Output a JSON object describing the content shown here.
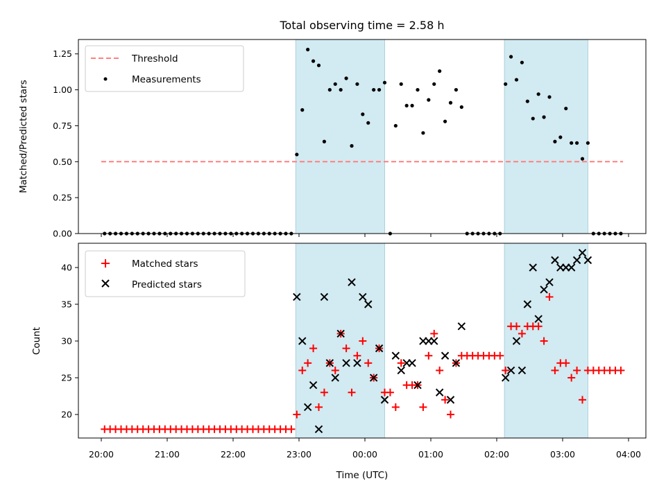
{
  "chart_data": {
    "type": "scatter",
    "title": "Total observing time = 2.58 h",
    "xlabel": "Time (UTC)",
    "x_ticks": [
      "20:00",
      "21:00",
      "22:00",
      "23:00",
      "00:00",
      "01:00",
      "02:00",
      "03:00",
      "04:00"
    ],
    "colors": {
      "threshold": "#ff7f7f",
      "measurements": "#000000",
      "matched": "#ff0000",
      "predicted": "#000000",
      "shade": "#add8e6"
    },
    "shaded_intervals": [
      [
        "22:57",
        "00:18"
      ],
      [
        "02:07",
        "03:23"
      ]
    ],
    "panels": [
      {
        "id": "ratio",
        "ylabel": "Matched/Predicted stars",
        "ylim": [
          0,
          1.35
        ],
        "y_ticks": [
          "0.00",
          "0.25",
          "0.50",
          "0.75",
          "1.00",
          "1.25"
        ],
        "legend": [
          "Threshold",
          "Measurements"
        ],
        "threshold": {
          "name": "Threshold",
          "y": 0.5,
          "x_range": [
            "20:00",
            "03:55"
          ]
        },
        "series": [
          {
            "name": "Measurements",
            "x": [
              "20:03",
              "20:08",
              "20:13",
              "20:18",
              "20:23",
              "20:28",
              "20:33",
              "20:38",
              "20:43",
              "20:48",
              "20:53",
              "20:58",
              "21:03",
              "21:08",
              "21:13",
              "21:18",
              "21:23",
              "21:28",
              "21:33",
              "21:38",
              "21:43",
              "21:48",
              "21:53",
              "21:58",
              "22:03",
              "22:08",
              "22:13",
              "22:18",
              "22:23",
              "22:28",
              "22:33",
              "22:38",
              "22:43",
              "22:48",
              "22:53",
              "22:58",
              "23:03",
              "23:08",
              "23:13",
              "23:18",
              "23:23",
              "23:28",
              "23:33",
              "23:38",
              "23:43",
              "23:48",
              "23:53",
              "23:58",
              "00:03",
              "00:08",
              "00:13",
              "00:18",
              "00:23",
              "00:28",
              "00:33",
              "00:38",
              "00:43",
              "00:48",
              "00:53",
              "00:58",
              "01:03",
              "01:08",
              "01:13",
              "01:18",
              "01:23",
              "01:28",
              "01:33",
              "01:38",
              "01:43",
              "01:48",
              "01:53",
              "01:58",
              "02:03",
              "02:08",
              "02:13",
              "02:18",
              "02:23",
              "02:28",
              "02:33",
              "02:38",
              "02:43",
              "02:48",
              "02:53",
              "02:58",
              "03:03",
              "03:08",
              "03:13",
              "03:18",
              "03:23",
              "03:28",
              "03:33",
              "03:38",
              "03:43",
              "03:48",
              "03:53"
            ],
            "y": [
              0,
              0,
              0,
              0,
              0,
              0,
              0,
              0,
              0,
              0,
              0,
              0,
              0,
              0,
              0,
              0,
              0,
              0,
              0,
              0,
              0,
              0,
              0,
              0,
              0,
              0,
              0,
              0,
              0,
              0,
              0,
              0,
              0,
              0,
              0,
              0.55,
              0.86,
              1.28,
              1.2,
              1.17,
              0.64,
              1.0,
              1.04,
              1.0,
              1.08,
              0.61,
              1.04,
              0.83,
              0.77,
              1.0,
              1.0,
              1.05,
              0,
              0.75,
              1.04,
              0.89,
              0.89,
              1.0,
              0.7,
              0.93,
              1.04,
              1.13,
              0.78,
              0.91,
              1.0,
              0.88,
              0,
              0,
              0,
              0,
              0,
              0,
              0,
              1.04,
              1.23,
              1.07,
              1.19,
              0.92,
              0.8,
              0.97,
              0.81,
              0.95,
              0.64,
              0.67,
              0.87,
              0.63,
              0.63,
              0.52,
              0.63,
              0,
              0,
              0,
              0,
              0,
              0
            ]
          }
        ]
      },
      {
        "id": "counts",
        "ylabel": "Count",
        "ylim": [
          16.8,
          43.3
        ],
        "y_ticks": [
          "20",
          "25",
          "30",
          "35",
          "40"
        ],
        "legend": [
          "Matched stars",
          "Predicted stars"
        ],
        "series": [
          {
            "name": "Matched stars",
            "marker": "plus",
            "x": [
              "20:03",
              "20:08",
              "20:13",
              "20:18",
              "20:23",
              "20:28",
              "20:33",
              "20:38",
              "20:43",
              "20:48",
              "20:53",
              "20:58",
              "21:03",
              "21:08",
              "21:13",
              "21:18",
              "21:23",
              "21:28",
              "21:33",
              "21:38",
              "21:43",
              "21:48",
              "21:53",
              "21:58",
              "22:03",
              "22:08",
              "22:13",
              "22:18",
              "22:23",
              "22:28",
              "22:33",
              "22:38",
              "22:43",
              "22:48",
              "22:53",
              "22:58",
              "23:03",
              "23:08",
              "23:13",
              "23:18",
              "23:23",
              "23:28",
              "23:33",
              "23:38",
              "23:43",
              "23:48",
              "23:53",
              "23:58",
              "00:03",
              "00:08",
              "00:13",
              "00:18",
              "00:23",
              "00:28",
              "00:33",
              "00:38",
              "00:43",
              "00:48",
              "00:53",
              "00:58",
              "01:03",
              "01:08",
              "01:13",
              "01:18",
              "01:23",
              "01:28",
              "01:33",
              "01:38",
              "01:43",
              "01:48",
              "01:53",
              "01:58",
              "02:03",
              "02:08",
              "02:13",
              "02:18",
              "02:23",
              "02:28",
              "02:33",
              "02:38",
              "02:43",
              "02:48",
              "02:53",
              "02:58",
              "03:03",
              "03:08",
              "03:13",
              "03:18",
              "03:23",
              "03:28",
              "03:33",
              "03:38",
              "03:43",
              "03:48",
              "03:53"
            ],
            "y": [
              18,
              18,
              18,
              18,
              18,
              18,
              18,
              18,
              18,
              18,
              18,
              18,
              18,
              18,
              18,
              18,
              18,
              18,
              18,
              18,
              18,
              18,
              18,
              18,
              18,
              18,
              18,
              18,
              18,
              18,
              18,
              18,
              18,
              18,
              18,
              20,
              26,
              27,
              29,
              21,
              23,
              27,
              26,
              31,
              29,
              23,
              28,
              30,
              27,
              25,
              29,
              23,
              23,
              21,
              27,
              24,
              24,
              24,
              21,
              28,
              31,
              26,
              22,
              20,
              27,
              28,
              28,
              28,
              28,
              28,
              28,
              28,
              28,
              26,
              32,
              32,
              31,
              32,
              32,
              32,
              30,
              36,
              26,
              27,
              27,
              25,
              26,
              22,
              26,
              26,
              26,
              26,
              26,
              26,
              26
            ]
          },
          {
            "name": "Predicted stars",
            "marker": "x",
            "x": [
              "22:58",
              "23:03",
              "23:08",
              "23:13",
              "23:18",
              "23:23",
              "23:28",
              "23:33",
              "23:38",
              "23:43",
              "23:48",
              "23:53",
              "23:58",
              "00:03",
              "00:08",
              "00:13",
              "00:18",
              "00:28",
              "00:33",
              "00:38",
              "00:43",
              "00:48",
              "00:53",
              "00:58",
              "01:03",
              "01:08",
              "01:13",
              "01:18",
              "01:23",
              "01:28",
              "02:08",
              "02:13",
              "02:18",
              "02:23",
              "02:28",
              "02:33",
              "02:38",
              "02:43",
              "02:48",
              "02:53",
              "02:58",
              "03:03",
              "03:08",
              "03:13",
              "03:18",
              "03:23"
            ],
            "y": [
              36,
              30,
              21,
              24,
              18,
              36,
              27,
              25,
              31,
              27,
              38,
              27,
              36,
              35,
              25,
              29,
              22,
              28,
              26,
              27,
              27,
              24,
              30,
              30,
              30,
              23,
              28,
              22,
              27,
              32,
              25,
              26,
              30,
              26,
              35,
              40,
              33,
              37,
              38,
              41,
              40,
              40,
              40,
              41,
              42,
              41
            ]
          }
        ]
      }
    ]
  }
}
